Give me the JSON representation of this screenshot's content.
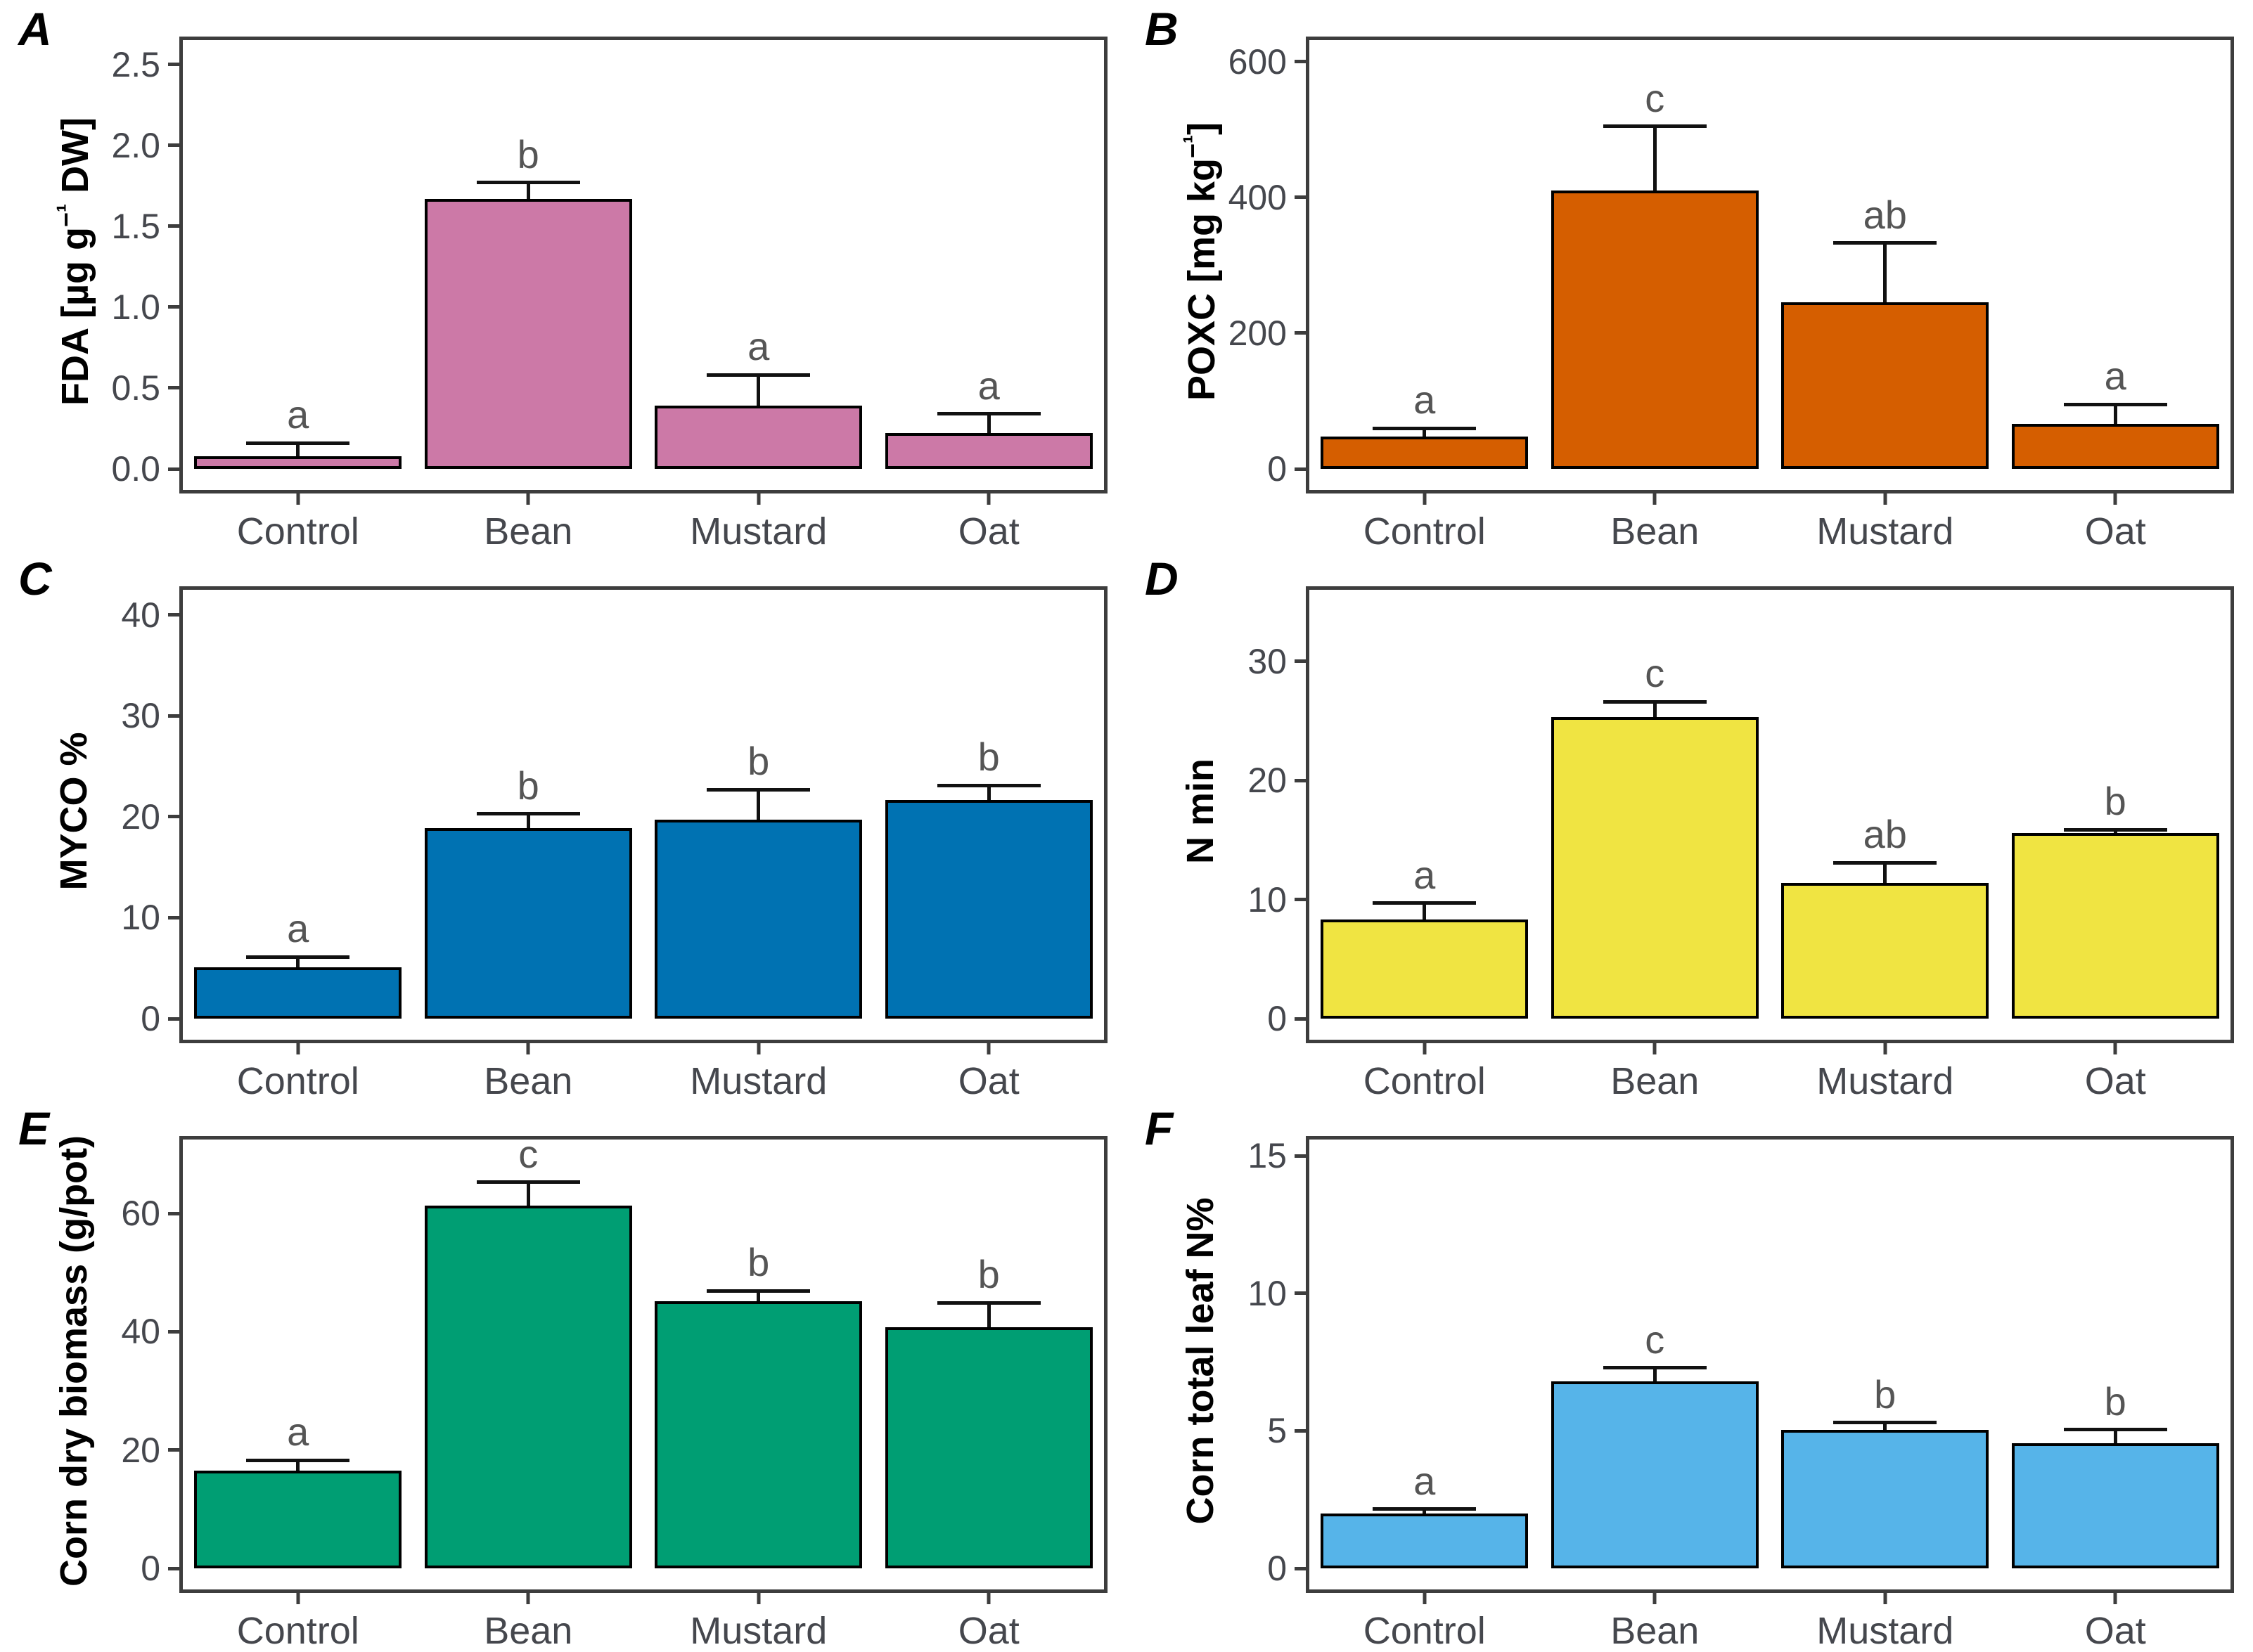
{
  "figure": {
    "description": "Six-panel bar chart figure comparing soil and corn measurements across cover crop treatments",
    "panel_letters": [
      "A",
      "B",
      "C",
      "D",
      "E",
      "F"
    ],
    "categories": [
      "Control",
      "Bean",
      "Mustard",
      "Oat"
    ],
    "frame_color": "#3d3d3d",
    "tick_text_color": "#45474d",
    "sig_letter_color": "#555555",
    "bar_border_color": "#000000",
    "background_color": "#ffffff"
  },
  "chart_data": [
    {
      "panel": "A",
      "type": "bar",
      "title": "",
      "xlabel": "",
      "ylabel": "FDA [µg g⁻¹ DW]",
      "categories": [
        "Control",
        "Bean",
        "Mustard",
        "Oat"
      ],
      "values": [
        0.08,
        1.67,
        0.39,
        0.22
      ],
      "error_top": [
        0.16,
        1.77,
        0.58,
        0.34
      ],
      "sig_letters": [
        "a",
        "b",
        "a",
        "a"
      ],
      "bar_color": "#CC79A7",
      "ylim": [
        0,
        2.65
      ],
      "yticks": [
        0.0,
        0.5,
        1.0,
        1.5,
        2.0,
        2.5
      ],
      "ytick_labels": [
        "0.0",
        "0.5",
        "1.0",
        "1.5",
        "2.0",
        "2.5"
      ],
      "grid": false,
      "legend": "none"
    },
    {
      "panel": "B",
      "type": "bar",
      "title": "",
      "xlabel": "",
      "ylabel": "POXC [mg kg⁻¹]",
      "categories": [
        "Control",
        "Bean",
        "Mustard",
        "Oat"
      ],
      "values": [
        48,
        410,
        246,
        66
      ],
      "error_top": [
        60,
        505,
        333,
        95
      ],
      "sig_letters": [
        "a",
        "c",
        "ab",
        "a"
      ],
      "bar_color": "#D55E00",
      "ylim": [
        0,
        632
      ],
      "yticks": [
        0,
        200,
        400,
        600
      ],
      "ytick_labels": [
        "0",
        "200",
        "400",
        "600"
      ],
      "grid": false,
      "legend": "none"
    },
    {
      "panel": "C",
      "type": "bar",
      "title": "",
      "xlabel": "",
      "ylabel": "MYCO %",
      "categories": [
        "Control",
        "Bean",
        "Mustard",
        "Oat"
      ],
      "values": [
        5.1,
        18.9,
        19.7,
        21.7
      ],
      "error_top": [
        6.1,
        20.3,
        22.7,
        23.1
      ],
      "sig_letters": [
        "a",
        "b",
        "b",
        "b"
      ],
      "bar_color": "#0072B2",
      "ylim": [
        0,
        42.5
      ],
      "yticks": [
        0,
        10,
        20,
        30,
        40
      ],
      "ytick_labels": [
        "0",
        "10",
        "20",
        "30",
        "40"
      ],
      "grid": false,
      "legend": "none"
    },
    {
      "panel": "D",
      "type": "bar",
      "title": "",
      "xlabel": "",
      "ylabel": "N min",
      "categories": [
        "Control",
        "Bean",
        "Mustard",
        "Oat"
      ],
      "values": [
        8.3,
        25.3,
        11.4,
        15.6
      ],
      "error_top": [
        9.7,
        26.6,
        13.1,
        15.85
      ],
      "sig_letters": [
        "a",
        "c",
        "ab",
        "b"
      ],
      "bar_color": "#F0E442",
      "ylim": [
        0,
        36
      ],
      "yticks": [
        0,
        10,
        20,
        30
      ],
      "ytick_labels": [
        "0",
        "10",
        "20",
        "30"
      ],
      "grid": false,
      "legend": "none"
    },
    {
      "panel": "E",
      "type": "bar",
      "title": "",
      "xlabel": "",
      "ylabel": "Corn dry biomass (g/pot)",
      "categories": [
        "Control",
        "Bean",
        "Mustard",
        "Oat"
      ],
      "values": [
        16.5,
        61.3,
        45.2,
        40.8
      ],
      "error_top": [
        18.3,
        65.3,
        46.9,
        44.9
      ],
      "sig_letters": [
        "a",
        "c",
        "b",
        "b"
      ],
      "bar_color": "#009E73",
      "ylim": [
        0,
        72.5
      ],
      "yticks": [
        0,
        20,
        40,
        60
      ],
      "ytick_labels": [
        "0",
        "20",
        "40",
        "60"
      ],
      "grid": false,
      "legend": "none"
    },
    {
      "panel": "F",
      "type": "bar",
      "title": "",
      "xlabel": "",
      "ylabel": "Corn total leaf N%",
      "categories": [
        "Control",
        "Bean",
        "Mustard",
        "Oat"
      ],
      "values": [
        2.0,
        6.8,
        5.05,
        4.55
      ],
      "error_top": [
        2.15,
        7.3,
        5.3,
        5.05
      ],
      "sig_letters": [
        "a",
        "c",
        "b",
        "b"
      ],
      "bar_color": "#56B4E9",
      "ylim": [
        0,
        15.6
      ],
      "yticks": [
        0,
        5,
        10,
        15
      ],
      "ytick_labels": [
        "0",
        "5",
        "10",
        "15"
      ],
      "grid": false,
      "legend": "none"
    }
  ]
}
